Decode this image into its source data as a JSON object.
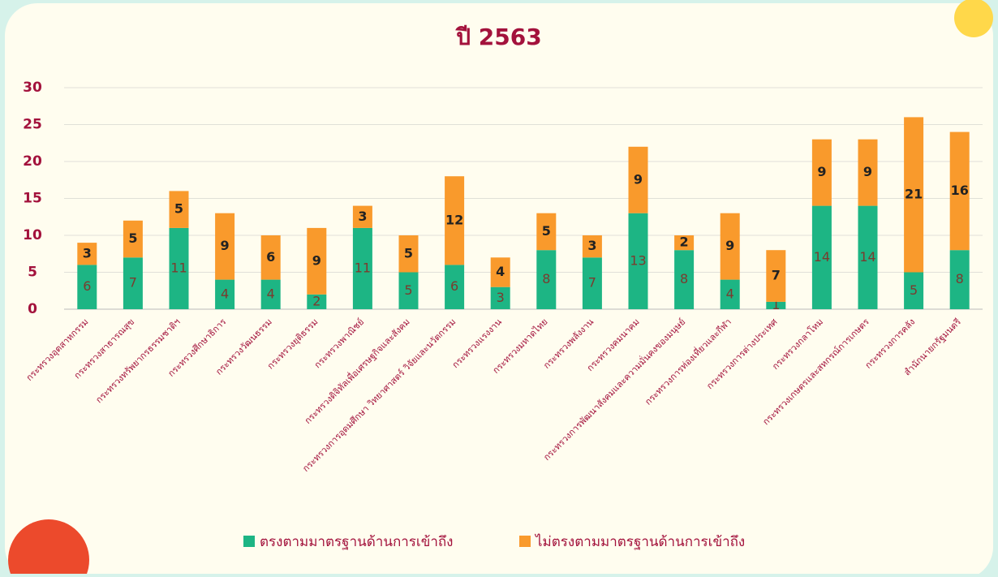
{
  "chart_data": {
    "type": "stacked-bar",
    "title": "ปี 2563",
    "categories": [
      "กระทรวงอุตสาหกรรม",
      "กระทรวงสาธารณสุข",
      "กระทรวงทรัพยากรธรรมชาติฯ",
      "กระทรวงศึกษาธิการ",
      "กระทรวงวัฒนธรรม",
      "กระทรวงยุติธรรม",
      "กระทรวงพาณิชย์",
      "กระทรวงดิจิทัลเพื่อเศรษฐกิจและสังคม",
      "กระทรวงการอุดมศึกษา วิทยาศาสตร์ วิจัยและนวัตกรรม",
      "กระทรวงแรงงาน",
      "กระทรวงมหาดไทย",
      "กระทรวงพลังงาน",
      "กระทรวงคมนาคม",
      "กระทรวงการพัฒนาสังคมและความมั่นคงของมนุษย์",
      "กระทรวงการท่องเที่ยวและกีฬา",
      "กระทรวงการต่างประเทศ",
      "กระทรวงกลาโหม",
      "กระทรวงเกษตรและสหกรณ์การเกษตร",
      "กระทรวงการคลัง",
      "สำนักนายกรัฐมนตรี"
    ],
    "series": [
      {
        "name": "ตรงตามมาตรฐานด้านการเข้าถึง",
        "color": "#1db584",
        "values": [
          6,
          7,
          11,
          4,
          4,
          2,
          11,
          5,
          6,
          3,
          8,
          7,
          13,
          8,
          4,
          1,
          14,
          14,
          5,
          8
        ]
      },
      {
        "name": "ไม่ตรงตามมาตรฐานด้านการเข้าถึง",
        "color": "#f99a2c",
        "values": [
          3,
          5,
          5,
          9,
          6,
          9,
          3,
          5,
          12,
          4,
          5,
          3,
          9,
          2,
          9,
          7,
          9,
          9,
          21,
          16
        ]
      }
    ],
    "ylim": [
      0,
      30
    ],
    "yticks": [
      0,
      5,
      10,
      15,
      20,
      25,
      30
    ],
    "grid": true
  }
}
